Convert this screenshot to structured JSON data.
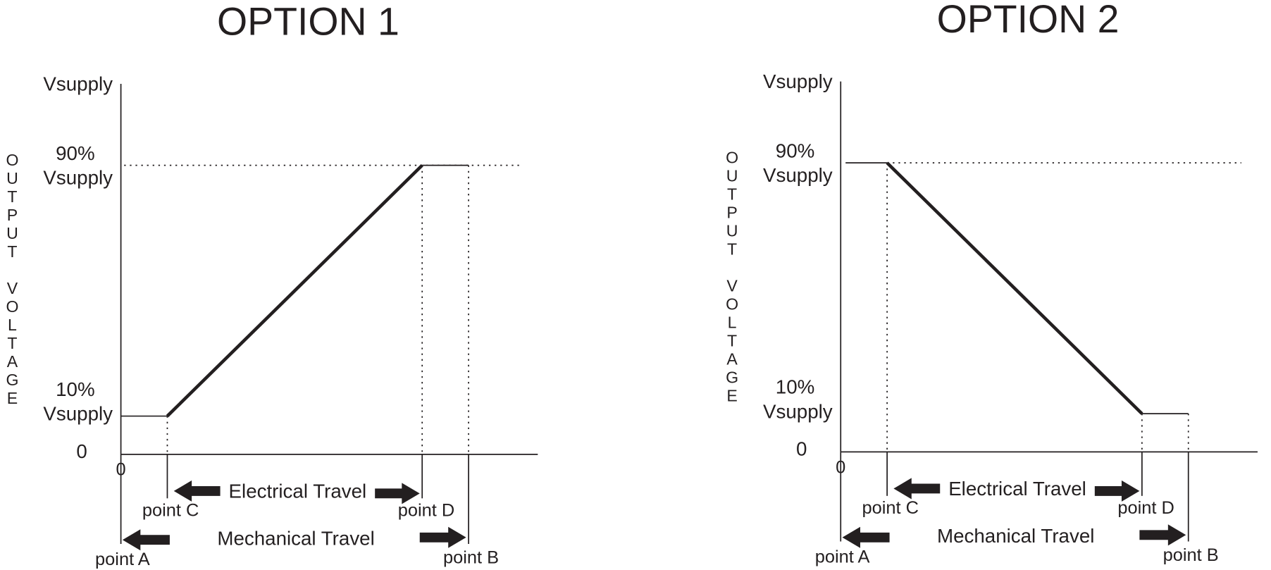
{
  "panels": [
    {
      "title": "OPTION 1",
      "y_axis_label": "OUTPUT VOLTAGE",
      "vsupply": "Vsupply",
      "p90": [
        "90%",
        "Vsupply"
      ],
      "p10": [
        "10%",
        "Vsupply"
      ],
      "zero_y": "0",
      "zero_x": "0",
      "point_a": "point A",
      "point b": "point B",
      "point_c": "point C",
      "point_d": "point D",
      "electrical": "Electrical Travel",
      "mechanical": "Mechanical Travel"
    },
    {
      "title": "OPTION 2",
      "y_axis_label": "OUTPUT VOLTAGE",
      "vsupply": "Vsupply",
      "p90": [
        "90%",
        "Vsupply"
      ],
      "p10": [
        "10%",
        "Vsupply"
      ],
      "zero_y": "0",
      "zero_x": "0",
      "point_a": "point A",
      "point b": "point B",
      "point_c": "point C",
      "point_d": "point D",
      "electrical": "Electrical Travel",
      "mechanical": "Mechanical Travel"
    }
  ]
}
